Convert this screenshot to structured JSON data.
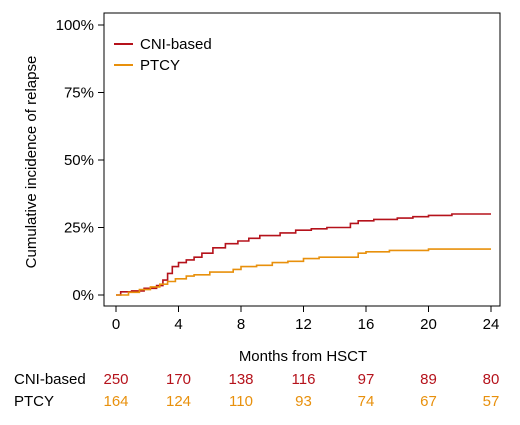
{
  "chart_data": {
    "type": "line",
    "title": "",
    "xlabel": "Months from HSCT",
    "ylabel": "Cumulative incidence of relapse",
    "xlim": [
      0,
      24
    ],
    "ylim": [
      0,
      100
    ],
    "x_ticks": [
      0,
      4,
      8,
      12,
      16,
      20,
      24
    ],
    "y_ticks": [
      0,
      25,
      50,
      75,
      100
    ],
    "y_tick_labels": [
      "0%",
      "25%",
      "50%",
      "75%",
      "100%"
    ],
    "step": true,
    "grid": false,
    "legend": "top-left",
    "series": [
      {
        "name": "CNI-based",
        "color": "#b5121b",
        "x": [
          0,
          0.3,
          1.0,
          1.8,
          2.6,
          3.0,
          3.3,
          3.6,
          4.0,
          4.5,
          5.0,
          5.5,
          6.2,
          7.0,
          7.8,
          8.5,
          9.2,
          10.5,
          11.5,
          12.5,
          13.5,
          15.0,
          15.5,
          16.5,
          18.0,
          19.0,
          20.0,
          21.5,
          24.0
        ],
        "y": [
          0,
          1.2,
          1.5,
          2.5,
          3.5,
          5.5,
          8.0,
          10.5,
          12.0,
          13.0,
          14.0,
          15.5,
          17.5,
          19.0,
          20.0,
          21.0,
          22.0,
          23.0,
          24.0,
          24.5,
          25.0,
          26.5,
          27.5,
          28.0,
          28.5,
          29.0,
          29.5,
          30.0,
          30.0
        ]
      },
      {
        "name": "PTCY",
        "color": "#e8900c",
        "x": [
          0,
          0.8,
          1.5,
          2.2,
          2.8,
          3.3,
          3.8,
          4.5,
          5.0,
          6.0,
          7.5,
          8.0,
          9.0,
          10.0,
          11.0,
          12.0,
          13.0,
          15.5,
          16.0,
          17.5,
          20.0,
          24.0
        ],
        "y": [
          0,
          1.0,
          2.0,
          3.0,
          4.0,
          5.0,
          6.0,
          7.0,
          7.5,
          8.5,
          9.5,
          10.5,
          11.0,
          12.0,
          12.5,
          13.5,
          14.0,
          15.5,
          16.0,
          16.5,
          17.0,
          17.0
        ]
      }
    ],
    "risk_table": {
      "times": [
        0,
        4,
        8,
        12,
        16,
        20,
        24
      ],
      "rows": [
        {
          "label": "CNI-based",
          "color": "#b5121b",
          "values": [
            "250",
            "170",
            "138",
            "116",
            "97",
            "89",
            "80"
          ]
        },
        {
          "label": "PTCY",
          "color": "#e8900c",
          "values": [
            "164",
            "124",
            "110",
            "93",
            "74",
            "67",
            "57"
          ]
        }
      ]
    }
  }
}
